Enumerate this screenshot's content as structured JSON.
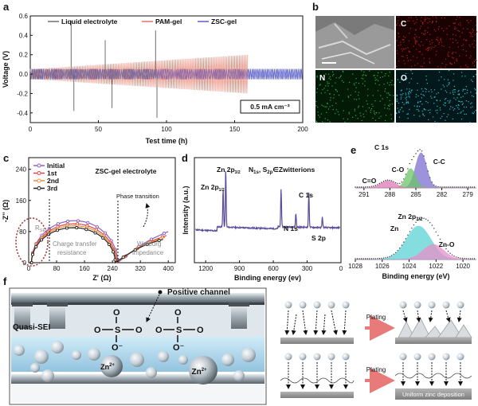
{
  "panels": {
    "a": "a",
    "b": "b",
    "c": "c",
    "d": "d",
    "e": "e",
    "f": "f"
  },
  "chart_data": [
    {
      "panel": "a",
      "type": "line",
      "xlabel": "Test time (h)",
      "ylabel": "Voltage (V)",
      "xlim": [
        0,
        200
      ],
      "ylim": [
        -0.5,
        0.6
      ],
      "xticks": [
        "0",
        "50",
        "100",
        "150",
        "200"
      ],
      "yticks": [
        "-0.4",
        "-0.2",
        "0.0",
        "0.2",
        "0.4",
        "0.6"
      ],
      "series": [
        {
          "name": "Liquid electrolyte",
          "color": "#6e6e6e",
          "x_end": 93,
          "base_amp": 0.05,
          "spike_times": [
            30,
            32,
            55,
            60,
            92,
            93
          ],
          "spike_values": [
            0.55,
            -0.38,
            0.35,
            -0.35,
            0.45,
            -0.45
          ]
        },
        {
          "name": "PAM-gel",
          "color": "#e8705c",
          "x_end": 160,
          "amp_start": 0.05,
          "amp_end": 0.2
        },
        {
          "name": "ZSC-gel",
          "color": "#5a5fc8",
          "x_end": 200,
          "amp": 0.055
        }
      ],
      "annotation": "0.5 mA cm⁻²"
    },
    {
      "panel": "c",
      "type": "line",
      "title": "ZSC-gel electrolyte",
      "xlabel": "Z' (Ω)",
      "ylabel": "-Z'' (Ω)",
      "xticks": [
        "0",
        "80",
        "160",
        "240",
        "320",
        "400"
      ],
      "yticks": [
        "0",
        "80",
        "160",
        "240"
      ],
      "xlim": [
        0,
        420
      ],
      "ylim": [
        0,
        270
      ],
      "series": [
        {
          "name": "Initial",
          "color": "#8a62c4",
          "semicircle": [
            8,
            255,
            108
          ],
          "tail_end": [
            400,
            80
          ]
        },
        {
          "name": "1st",
          "color": "#e04848",
          "semicircle": [
            8,
            252,
            100
          ],
          "tail_end": [
            395,
            70
          ]
        },
        {
          "name": "2nd",
          "color": "#f09030",
          "semicircle": [
            8,
            250,
            95
          ],
          "tail_end": [
            390,
            65
          ]
        },
        {
          "name": "3rd",
          "color": "#222222",
          "semicircle": [
            8,
            248,
            90
          ],
          "tail_end": [
            385,
            60
          ]
        }
      ],
      "annotations": {
        "rsei": "R",
        "rsei_sub": "SEI",
        "charge_transfer_1": "Charge transfer",
        "charge_transfer_2": "resistance",
        "warburg_1": "Warburg",
        "warburg_2": "impedance",
        "phase": "Phase transition"
      }
    },
    {
      "panel": "d",
      "type": "line",
      "xlabel": "Binding energy (ev)",
      "ylabel": "Intensity (a.u.)",
      "xlim": [
        1300,
        0
      ],
      "xticks": [
        "1200",
        "900",
        "600",
        "300",
        "0"
      ],
      "line_color": "#5b4a9b",
      "peaks": [
        {
          "label": "Zn 2p",
          "label_sub": "1/2",
          "x": 1045,
          "h": 0.55
        },
        {
          "label": "Zn 2p",
          "label_sub": "3/2",
          "x": 1022,
          "h": 0.85
        },
        {
          "label": "C 1s",
          "x": 285,
          "h": 0.5
        },
        {
          "label": "N 1s",
          "x": 400,
          "h": 0.2
        },
        {
          "label": "S 2p",
          "x": 165,
          "h": 0.15
        }
      ],
      "title_parts": {
        "n": "N",
        "n_sub": "1s",
        "comma": ", ",
        "s": "S",
        "s_sub": "2p",
        "rest": "∈Zwitterions"
      },
      "o_peak_x": 531
    },
    {
      "panel": "e",
      "type": "area",
      "subplots": [
        {
          "title": "C 1s",
          "xticks": [
            "291",
            "288",
            "285",
            "282",
            "279"
          ],
          "xlim": [
            292,
            278
          ],
          "components": [
            {
              "name": "C-C",
              "center": 284.4,
              "color": "#7b6fd1"
            },
            {
              "name": "C-O",
              "center": 285.6,
              "color": "#6cc56a"
            },
            {
              "name": "C=O",
              "center": 288.2,
              "color": "#e079b6"
            }
          ]
        },
        {
          "title": "Zn 2p",
          "title_sub": "3/2",
          "xticks": [
            "1028",
            "1026",
            "1024",
            "1022",
            "1020"
          ],
          "xlim": [
            1028,
            1019
          ],
          "components": [
            {
              "name": "Zn",
              "center": 1023.3,
              "color": "#5bd3d6"
            },
            {
              "name": "Zn-O",
              "center": 1022.2,
              "color": "#e890c8"
            }
          ]
        }
      ],
      "xlabel": "Binding energy (eV)"
    }
  ],
  "panel_b": {
    "elements": [
      "C",
      "N",
      "O"
    ],
    "colors": {
      "C": "#b02020",
      "N": "#30b050",
      "O": "#30c0d0"
    }
  },
  "panel_f": {
    "positive_channel": "Positive channel",
    "quasi_sei": "Quasi-SEI",
    "zn_ion": "Zn",
    "zn_ion_sup": "2+",
    "plating_top": "Plating",
    "plating_bottom": "Plating",
    "uniform_label": "Uniform zinc deposition",
    "structure": {
      "o": "O",
      "s": "S",
      "o_minus": "O⁻"
    }
  }
}
